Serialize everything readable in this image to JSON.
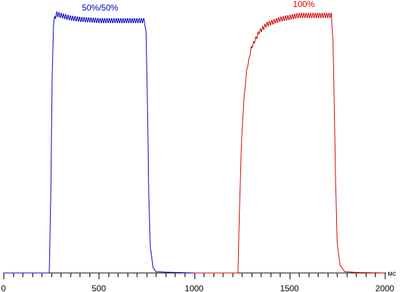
{
  "chart_data": {
    "type": "line",
    "x_unit": "мс",
    "xlim": [
      0,
      2000
    ],
    "ylim": [
      0,
      100
    ],
    "x_ticks": [
      0,
      500,
      1000,
      1500,
      2000
    ],
    "grid": false,
    "series": [
      {
        "name": "50%/50%",
        "color": "#0000c0",
        "points": [
          [
            0,
            0
          ],
          [
            235,
            0
          ],
          [
            240,
            0
          ],
          [
            248,
            30
          ],
          [
            255,
            75
          ],
          [
            262,
            96
          ],
          [
            270,
            99
          ],
          [
            280,
            100
          ],
          [
            300,
            99.5
          ],
          [
            350,
            98.5
          ],
          [
            400,
            98
          ],
          [
            500,
            97.5
          ],
          [
            600,
            97.5
          ],
          [
            700,
            97.5
          ],
          [
            740,
            97.5
          ],
          [
            748,
            92
          ],
          [
            755,
            65
          ],
          [
            762,
            30
          ],
          [
            770,
            10
          ],
          [
            785,
            2
          ],
          [
            800,
            0.5
          ],
          [
            850,
            0.3
          ],
          [
            1000,
            0
          ]
        ]
      },
      {
        "name": "100%",
        "color": "#d00000",
        "points": [
          [
            1000,
            0
          ],
          [
            1220,
            0
          ],
          [
            1230,
            0
          ],
          [
            1238,
            25
          ],
          [
            1248,
            50
          ],
          [
            1260,
            66
          ],
          [
            1275,
            78
          ],
          [
            1300,
            87
          ],
          [
            1340,
            93
          ],
          [
            1380,
            96
          ],
          [
            1450,
            98
          ],
          [
            1550,
            99.5
          ],
          [
            1650,
            99.5
          ],
          [
            1720,
            99.5
          ],
          [
            1728,
            90
          ],
          [
            1735,
            65
          ],
          [
            1742,
            35
          ],
          [
            1750,
            12
          ],
          [
            1765,
            3
          ],
          [
            1790,
            0.5
          ],
          [
            1850,
            0.2
          ],
          [
            2000,
            0
          ]
        ]
      }
    ]
  }
}
